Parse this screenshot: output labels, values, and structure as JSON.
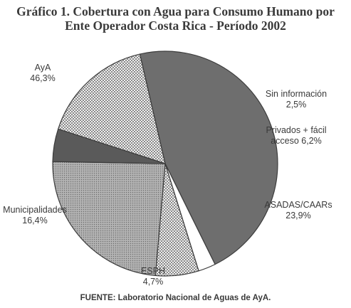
{
  "header": {
    "title_line_1": "Gráfico 1.  Cobertura con Agua para Consumo Humano por",
    "title_line_2": "Ente Operador Costa Rica - Período 2002"
  },
  "footer": {
    "source": "FUENTE: Laboratorio Nacional de Aguas de AyA."
  },
  "chart_data": {
    "type": "pie",
    "title": "Gráfico 1.  Cobertura con Agua para Consumo Humano por Ente Operador Costa Rica - Período 2002",
    "unit": "%",
    "slices": [
      {
        "name": "AyA",
        "value": 46.3,
        "value_label": "46,3%",
        "color": "#6e6e6e",
        "pattern": "solid"
      },
      {
        "name": "Sin información",
        "value": 2.5,
        "value_label": "2,5%",
        "color": "#ffffff",
        "pattern": "solid"
      },
      {
        "name": "Privados + fácil acceso",
        "value": 6.2,
        "value_label": "6,2%",
        "color": "#b8b8b8",
        "pattern": "checker"
      },
      {
        "name": "ASADAS/CAARs",
        "value": 23.9,
        "value_label": "23,9%",
        "color": "#9a9a9a",
        "pattern": "dots"
      },
      {
        "name": "ESPH",
        "value": 4.7,
        "value_label": "4,7%",
        "color": "#5a5a5a",
        "pattern": "solid"
      },
      {
        "name": "Municipalidades",
        "value": 16.4,
        "value_label": "16,4%",
        "color": "#d0d0d0",
        "pattern": "checker"
      }
    ]
  }
}
